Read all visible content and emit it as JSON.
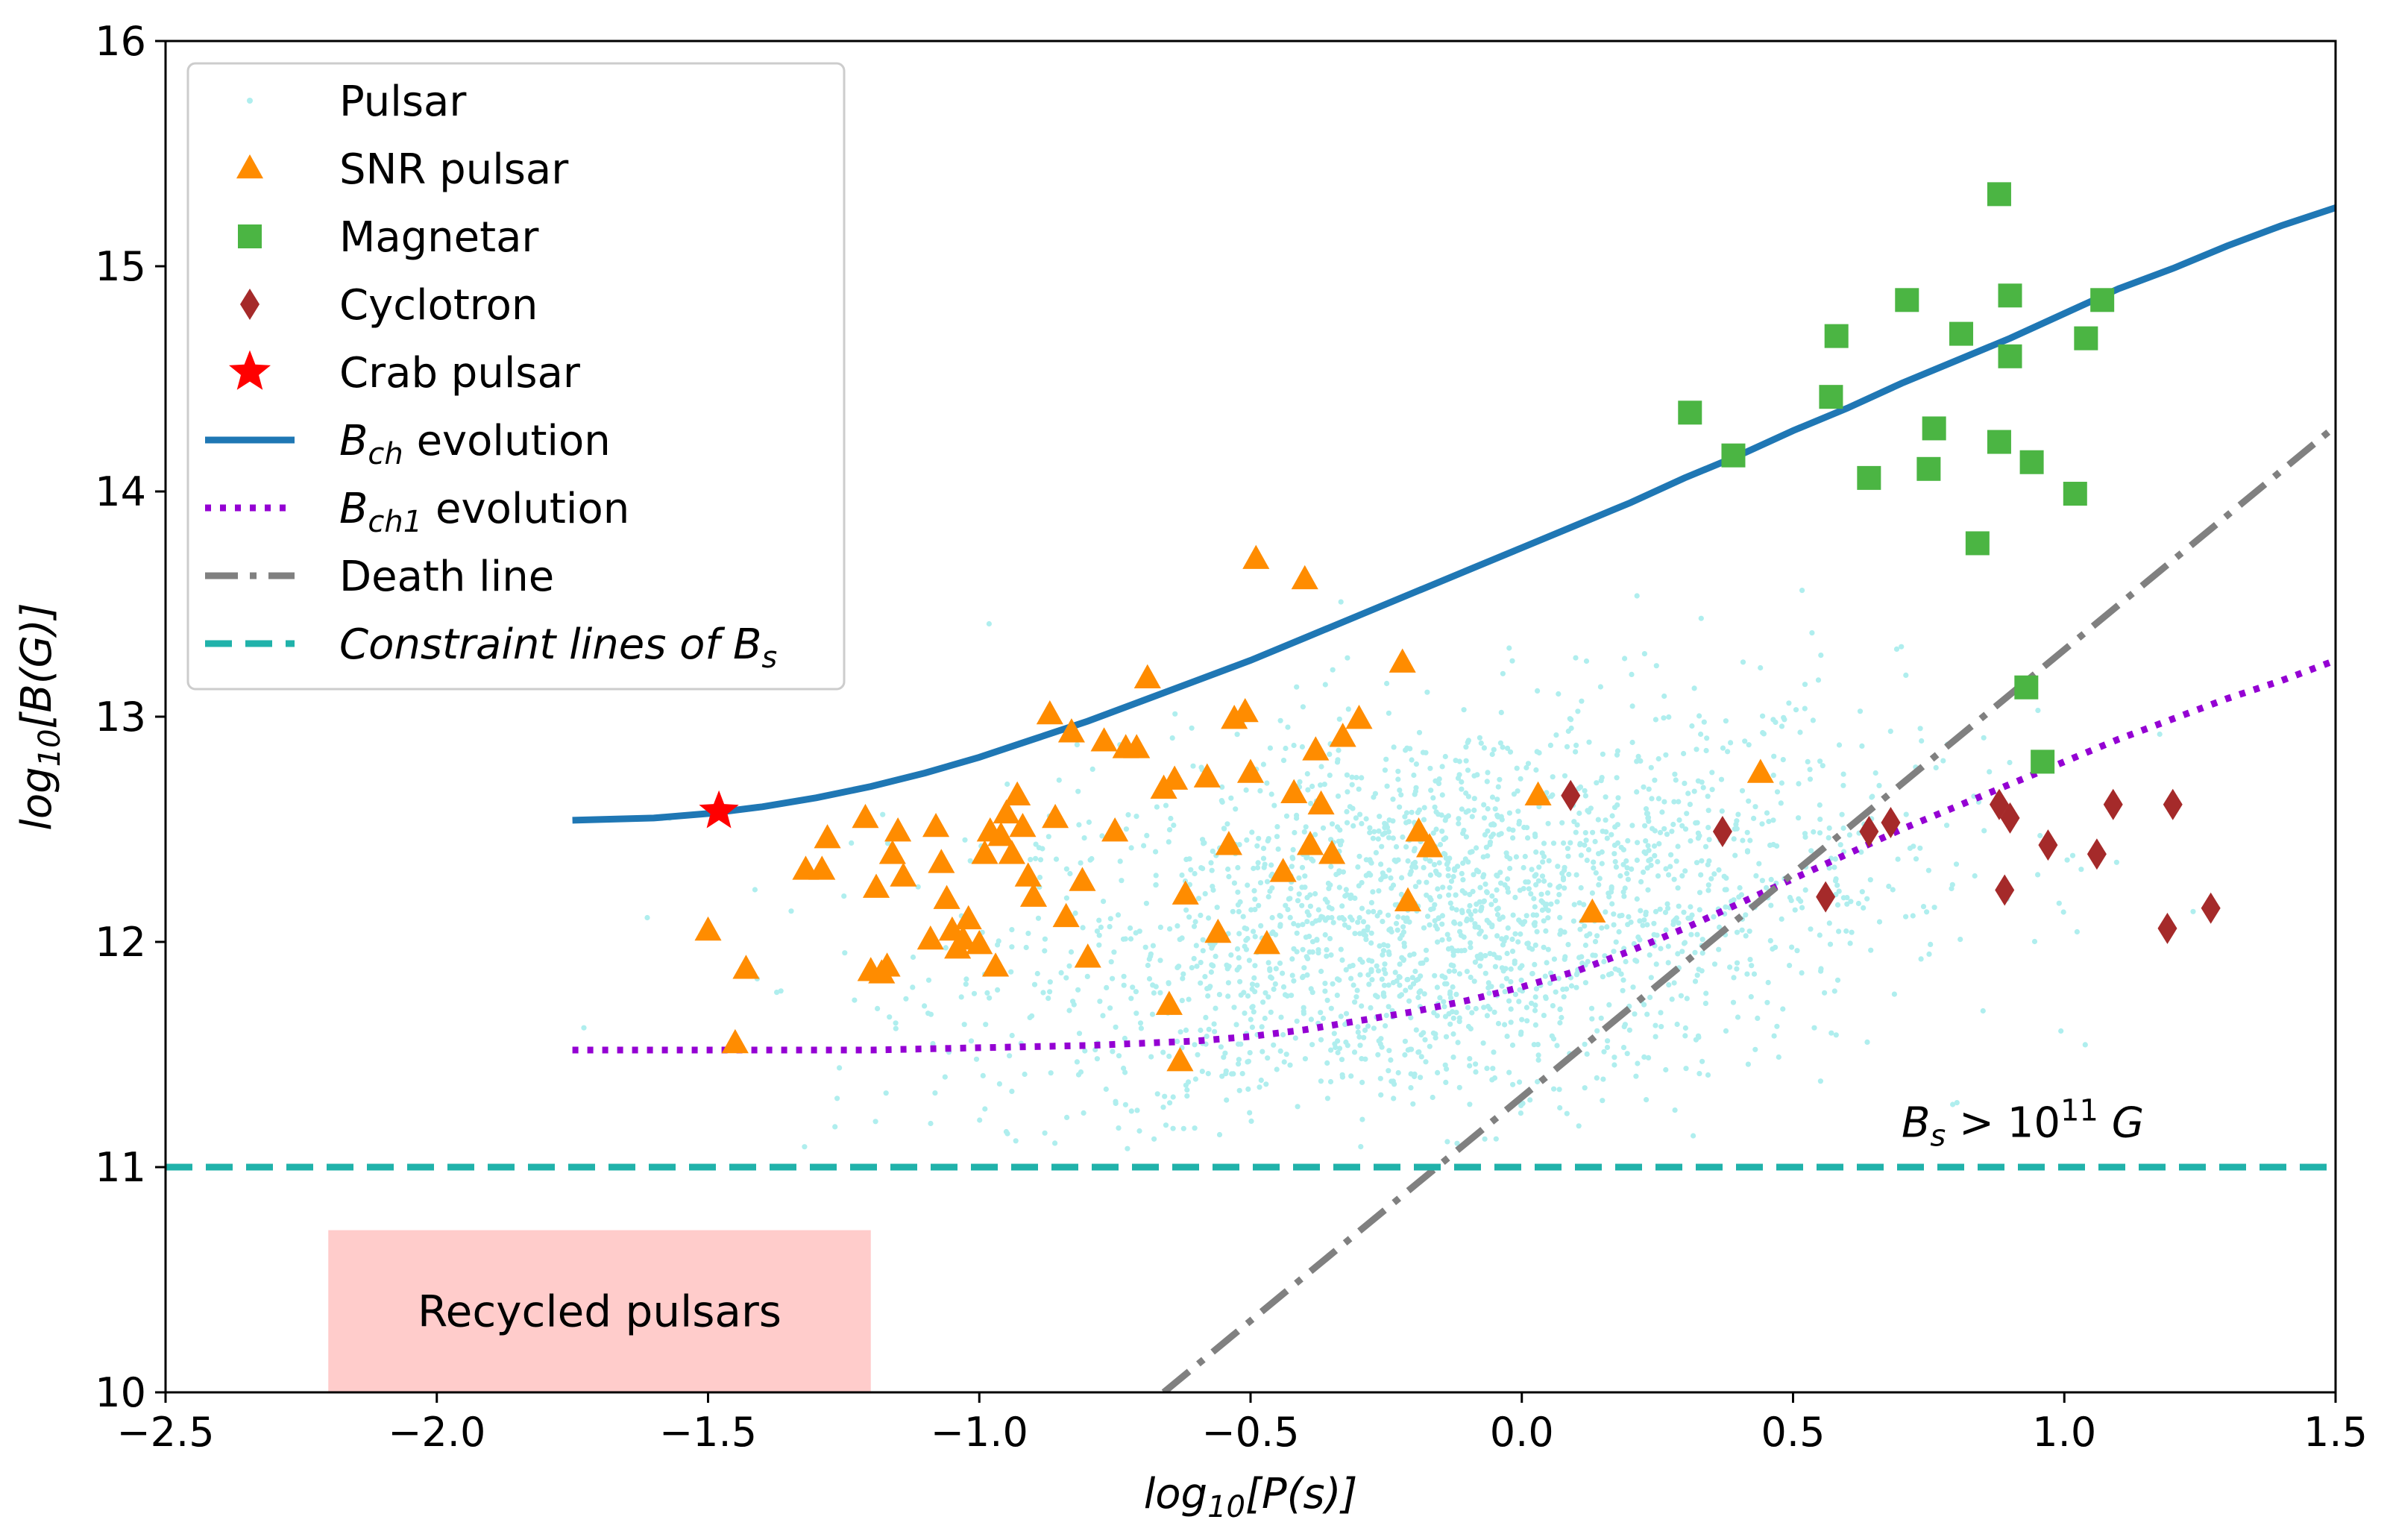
{
  "chart_data": {
    "type": "scatter",
    "xlabel_parts": {
      "pre": "log",
      "sub": "10",
      "post": "[P(s)]"
    },
    "ylabel_parts": {
      "pre": "log",
      "sub": "10",
      "post": "[B(G)]"
    },
    "xlim": [
      -2.5,
      1.5
    ],
    "ylim": [
      10,
      16
    ],
    "x_ticks": [
      -2.5,
      -2.0,
      -1.5,
      -1.0,
      -0.5,
      0.0,
      0.5,
      1.0,
      1.5
    ],
    "x_tick_labels": [
      "−2.5",
      "−2.0",
      "−1.5",
      "−1.0",
      "−0.5",
      "0.0",
      "0.5",
      "1.0",
      "1.5"
    ],
    "y_ticks": [
      10,
      11,
      12,
      13,
      14,
      15,
      16
    ],
    "y_tick_labels": [
      "10",
      "11",
      "12",
      "13",
      "14",
      "15",
      "16"
    ],
    "grid": false,
    "legend": {
      "placement": "top-left",
      "entries": [
        {
          "key": "pulsar",
          "label": "Pulsar",
          "marker": "dot",
          "color": "#afeeee"
        },
        {
          "key": "snr",
          "label": "SNR pulsar",
          "marker": "triangle",
          "color": "#ff8c00"
        },
        {
          "key": "magnetar",
          "label": "Magnetar",
          "marker": "square",
          "color": "#4bb543"
        },
        {
          "key": "cyclotron",
          "label": "Cyclotron",
          "marker": "diamond",
          "color": "#a52a2a"
        },
        {
          "key": "crab",
          "label": "Crab pulsar",
          "marker": "star",
          "color": "#ff0000"
        },
        {
          "key": "bch",
          "label_parts": {
            "pre": "B",
            "sub": "ch",
            "post": " evolution"
          },
          "line": "solid",
          "color": "#1f77b4"
        },
        {
          "key": "bch1",
          "label_parts": {
            "pre": "B",
            "sub": "ch1",
            "post": " evolution"
          },
          "line": "dotted",
          "color": "#9400d3"
        },
        {
          "key": "death",
          "label": "Death line",
          "line": "dashdot",
          "color": "#808080"
        },
        {
          "key": "constraint",
          "label_parts": {
            "pre": "Constraint lines of B",
            "sub": "s",
            "post": ""
          },
          "line": "dashed",
          "color": "#20b2aa"
        }
      ]
    },
    "series": [
      {
        "name": "SNR pulsar",
        "points": [
          [
            -1.5,
            12.05
          ],
          [
            -1.45,
            11.55
          ],
          [
            -1.43,
            11.88
          ],
          [
            -1.32,
            12.32
          ],
          [
            -1.29,
            12.32
          ],
          [
            -1.28,
            12.46
          ],
          [
            -1.21,
            12.55
          ],
          [
            -1.2,
            11.87
          ],
          [
            -1.19,
            12.24
          ],
          [
            -1.18,
            11.86
          ],
          [
            -1.17,
            11.89
          ],
          [
            -1.16,
            12.39
          ],
          [
            -1.15,
            12.49
          ],
          [
            -1.14,
            12.29
          ],
          [
            -1.09,
            12.01
          ],
          [
            -1.08,
            12.51
          ],
          [
            -1.07,
            12.35
          ],
          [
            -1.06,
            12.19
          ],
          [
            -1.05,
            12.05
          ],
          [
            -1.04,
            11.97
          ],
          [
            -1.03,
            12.01
          ],
          [
            -1.02,
            12.1
          ],
          [
            -1.0,
            11.99
          ],
          [
            -0.99,
            12.39
          ],
          [
            -0.98,
            12.49
          ],
          [
            -0.97,
            11.89
          ],
          [
            -0.96,
            12.47
          ],
          [
            -0.95,
            12.57
          ],
          [
            -0.94,
            12.39
          ],
          [
            -0.93,
            12.65
          ],
          [
            -0.92,
            12.51
          ],
          [
            -0.91,
            12.29
          ],
          [
            -0.9,
            12.2
          ],
          [
            -0.87,
            13.01
          ],
          [
            -0.86,
            12.55
          ],
          [
            -0.84,
            12.11
          ],
          [
            -0.83,
            12.93
          ],
          [
            -0.81,
            12.27
          ],
          [
            -0.8,
            11.93
          ],
          [
            -0.77,
            12.89
          ],
          [
            -0.75,
            12.49
          ],
          [
            -0.73,
            12.86
          ],
          [
            -0.71,
            12.86
          ],
          [
            -0.69,
            13.17
          ],
          [
            -0.66,
            12.68
          ],
          [
            -0.65,
            11.72
          ],
          [
            -0.64,
            12.72
          ],
          [
            -0.63,
            11.47
          ],
          [
            -0.62,
            12.21
          ],
          [
            -0.58,
            12.73
          ],
          [
            -0.56,
            12.04
          ],
          [
            -0.54,
            12.43
          ],
          [
            -0.53,
            12.99
          ],
          [
            -0.51,
            13.02
          ],
          [
            -0.5,
            12.75
          ],
          [
            -0.49,
            13.7
          ],
          [
            -0.47,
            11.99
          ],
          [
            -0.44,
            12.31
          ],
          [
            -0.42,
            12.66
          ],
          [
            -0.4,
            13.61
          ],
          [
            -0.39,
            12.43
          ],
          [
            -0.38,
            12.85
          ],
          [
            -0.37,
            12.61
          ],
          [
            -0.35,
            12.39
          ],
          [
            -0.33,
            12.91
          ],
          [
            -0.3,
            12.99
          ],
          [
            -0.22,
            13.24
          ],
          [
            -0.21,
            12.18
          ],
          [
            -0.19,
            12.49
          ],
          [
            -0.17,
            12.42
          ],
          [
            0.03,
            12.65
          ],
          [
            0.13,
            12.13
          ],
          [
            0.44,
            12.75
          ]
        ]
      },
      {
        "name": "Magnetar",
        "points": [
          [
            0.31,
            14.35
          ],
          [
            0.39,
            14.16
          ],
          [
            0.57,
            14.42
          ],
          [
            0.58,
            14.69
          ],
          [
            0.64,
            14.06
          ],
          [
            0.71,
            14.85
          ],
          [
            0.75,
            14.1
          ],
          [
            0.76,
            14.28
          ],
          [
            0.81,
            14.7
          ],
          [
            0.84,
            13.77
          ],
          [
            0.88,
            15.32
          ],
          [
            0.88,
            14.22
          ],
          [
            0.9,
            14.6
          ],
          [
            0.9,
            14.87
          ],
          [
            0.93,
            13.13
          ],
          [
            0.94,
            14.13
          ],
          [
            0.96,
            12.8
          ],
          [
            1.02,
            13.99
          ],
          [
            1.04,
            14.68
          ],
          [
            1.07,
            14.85
          ]
        ]
      },
      {
        "name": "Cyclotron",
        "points": [
          [
            0.09,
            12.65
          ],
          [
            0.37,
            12.49
          ],
          [
            0.56,
            12.2
          ],
          [
            0.64,
            12.49
          ],
          [
            0.68,
            12.53
          ],
          [
            0.88,
            12.61
          ],
          [
            0.89,
            12.23
          ],
          [
            0.9,
            12.55
          ],
          [
            0.97,
            12.43
          ],
          [
            1.06,
            12.39
          ],
          [
            1.09,
            12.61
          ],
          [
            1.19,
            12.06
          ],
          [
            1.2,
            12.61
          ],
          [
            1.27,
            12.15
          ]
        ]
      },
      {
        "name": "Crab pulsar",
        "points": [
          [
            -1.48,
            12.58
          ]
        ]
      }
    ],
    "pulsar_cloud": {
      "center": [
        -0.15,
        12.1
      ],
      "spread": [
        0.42,
        0.45
      ],
      "count": 2200,
      "x_range": [
        -1.8,
        1.4
      ],
      "y_range": [
        11.08,
        13.75
      ]
    },
    "curves": [
      {
        "name": "B_ch evolution",
        "points": [
          [
            -1.75,
            12.54
          ],
          [
            -1.6,
            12.55
          ],
          [
            -1.5,
            12.57
          ],
          [
            -1.4,
            12.6
          ],
          [
            -1.3,
            12.64
          ],
          [
            -1.2,
            12.69
          ],
          [
            -1.1,
            12.75
          ],
          [
            -1.0,
            12.82
          ],
          [
            -0.9,
            12.9
          ],
          [
            -0.8,
            12.98
          ],
          [
            -0.7,
            13.07
          ],
          [
            -0.6,
            13.16
          ],
          [
            -0.5,
            13.25
          ],
          [
            -0.4,
            13.35
          ],
          [
            -0.3,
            13.45
          ],
          [
            -0.2,
            13.55
          ],
          [
            -0.1,
            13.65
          ],
          [
            0.0,
            13.75
          ],
          [
            0.1,
            13.85
          ],
          [
            0.2,
            13.95
          ],
          [
            0.3,
            14.06
          ],
          [
            0.4,
            14.16
          ],
          [
            0.5,
            14.27
          ],
          [
            0.6,
            14.37
          ],
          [
            0.7,
            14.48
          ],
          [
            0.8,
            14.58
          ],
          [
            0.9,
            14.68
          ],
          [
            1.0,
            14.79
          ],
          [
            1.1,
            14.9
          ],
          [
            1.2,
            14.99
          ],
          [
            1.3,
            15.09
          ],
          [
            1.4,
            15.18
          ],
          [
            1.5,
            15.26
          ]
        ]
      },
      {
        "name": "B_ch1 evolution",
        "points": [
          [
            -1.75,
            11.52
          ],
          [
            -1.5,
            11.52
          ],
          [
            -1.2,
            11.52
          ],
          [
            -1.0,
            11.53
          ],
          [
            -0.8,
            11.54
          ],
          [
            -0.6,
            11.56
          ],
          [
            -0.5,
            11.58
          ],
          [
            -0.4,
            11.61
          ],
          [
            -0.3,
            11.65
          ],
          [
            -0.2,
            11.69
          ],
          [
            -0.1,
            11.74
          ],
          [
            0.0,
            11.8
          ],
          [
            0.1,
            11.87
          ],
          [
            0.2,
            11.96
          ],
          [
            0.3,
            12.06
          ],
          [
            0.4,
            12.17
          ],
          [
            0.5,
            12.28
          ],
          [
            0.6,
            12.39
          ],
          [
            0.7,
            12.5
          ],
          [
            0.8,
            12.6
          ],
          [
            0.9,
            12.7
          ],
          [
            1.0,
            12.8
          ],
          [
            1.1,
            12.9
          ],
          [
            1.2,
            12.99
          ],
          [
            1.3,
            13.08
          ],
          [
            1.4,
            13.16
          ],
          [
            1.5,
            13.25
          ]
        ]
      },
      {
        "name": "Death line",
        "points": [
          [
            -0.66,
            10.0
          ],
          [
            1.5,
            14.29
          ]
        ]
      },
      {
        "name": "Constraint lines of B_s",
        "points": [
          [
            -2.5,
            11.0
          ],
          [
            1.5,
            11.0
          ]
        ]
      }
    ],
    "annotations": {
      "constraint_parts": {
        "b": "B",
        "sub": "s",
        "mid": " > 10",
        "sup": "11",
        "post": " G"
      },
      "constraint_at": [
        0.7,
        11.2
      ],
      "recycled_label": "Recycled pulsars",
      "recycled_region": {
        "x": [
          -2.2,
          -1.2
        ],
        "y": [
          10.0,
          10.72
        ],
        "color": "#ffcccb"
      }
    }
  }
}
